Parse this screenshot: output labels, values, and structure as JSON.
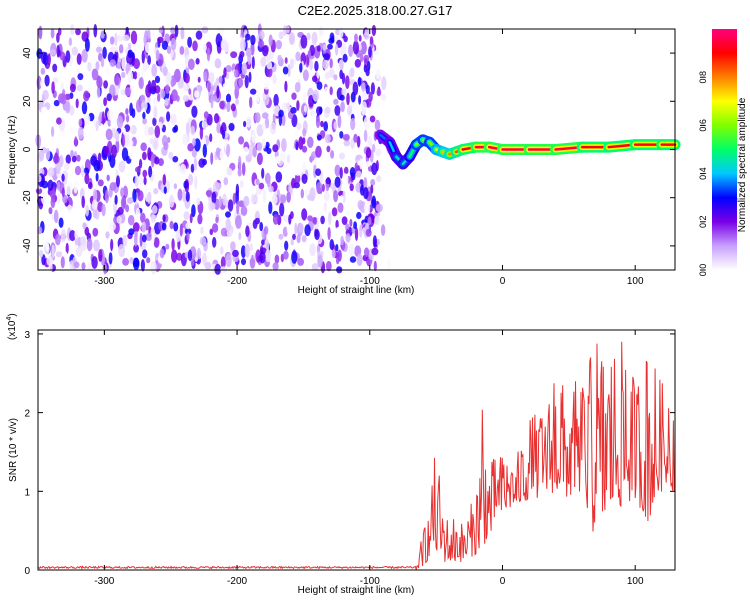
{
  "page": {
    "title": "C2E2.2025.318.00.27.G17"
  },
  "chart_data": [
    {
      "type": "heatmap",
      "xlabel": "Height of straight line (km)",
      "ylabel": "Frequency (Hz)",
      "xlim": [
        -350,
        130
      ],
      "ylim": [
        -50,
        50
      ],
      "xticks": [
        -300,
        -200,
        -100,
        0,
        100
      ],
      "yticks": [
        -40,
        -20,
        0,
        20,
        40
      ],
      "noise_region": {
        "x_from": -350,
        "x_to": -85,
        "freq_range": [
          -50,
          50
        ],
        "amplitude_range": [
          0.0,
          0.3
        ]
      },
      "signal_trace": {
        "x": [
          -92,
          -85,
          -80,
          -75,
          -70,
          -65,
          -60,
          -55,
          -50,
          -45,
          -40,
          -35,
          -30,
          -20,
          -10,
          0,
          20,
          40,
          60,
          80,
          100,
          120,
          130
        ],
        "freq": [
          6,
          3,
          -3,
          -6,
          -3,
          2,
          4,
          3,
          0,
          -1,
          -2,
          -1,
          0,
          1,
          1,
          0,
          0,
          0,
          1,
          1,
          2,
          2,
          2
        ],
        "amplitude": [
          0.35,
          0.4,
          0.45,
          0.45,
          0.5,
          0.6,
          0.6,
          0.6,
          0.7,
          0.75,
          0.8,
          0.85,
          0.9,
          0.95,
          0.95,
          0.95,
          0.95,
          0.95,
          0.9,
          0.9,
          0.9,
          0.9,
          0.9
        ]
      },
      "colorbar": {
        "label": "Normalized spectral amplitude",
        "range": [
          0,
          1
        ],
        "ticks": [
          "0.0",
          "0.2",
          "0.4",
          "0.6",
          "0.8"
        ],
        "tick_values": [
          0.0,
          0.2,
          0.4,
          0.6,
          0.8
        ],
        "colors": [
          "#ffffff",
          "#c8a0ff",
          "#7a00e6",
          "#0000ff",
          "#00c8ff",
          "#00ff66",
          "#80ff00",
          "#ffff00",
          "#ff8000",
          "#ff0000",
          "#ff0080"
        ]
      }
    },
    {
      "type": "line",
      "xlabel": "Height of straight line (km)",
      "ylabel": "SNR (10 * v/v)",
      "scale_label": "(x10",
      "scale_exp": "4",
      "scale_close": ")",
      "xlim": [
        -350,
        130
      ],
      "ylim": [
        0,
        3.05
      ],
      "xticks": [
        -300,
        -200,
        -100,
        0,
        100
      ],
      "yticks": [
        0,
        1,
        2,
        3
      ],
      "line_color": "#e83030",
      "series": {
        "name": "SNR",
        "envelope_x": [
          -350,
          -300,
          -200,
          -100,
          -65,
          -60,
          -55,
          -50,
          -45,
          -40,
          -35,
          -30,
          -20,
          -15,
          -10,
          0,
          10,
          20,
          30,
          40,
          50,
          60,
          70,
          80,
          90,
          100,
          110,
          120,
          130
        ],
        "envelope_high": [
          0.05,
          0.05,
          0.05,
          0.05,
          0.05,
          0.5,
          0.8,
          1.65,
          0.9,
          0.6,
          0.8,
          0.6,
          1.0,
          2.2,
          1.4,
          1.5,
          1.4,
          2.0,
          2.0,
          2.5,
          2.3,
          2.5,
          2.9,
          3.0,
          2.9,
          2.5,
          2.9,
          2.4,
          2.4
        ],
        "envelope_low": [
          0.0,
          0.0,
          0.0,
          0.0,
          0.0,
          0.05,
          0.15,
          0.2,
          0.1,
          0.1,
          0.1,
          0.1,
          0.2,
          0.3,
          0.4,
          0.7,
          0.8,
          0.9,
          0.9,
          1.0,
          0.9,
          0.8,
          0.4,
          0.7,
          0.8,
          0.9,
          0.6,
          1.0,
          1.0
        ]
      }
    }
  ]
}
